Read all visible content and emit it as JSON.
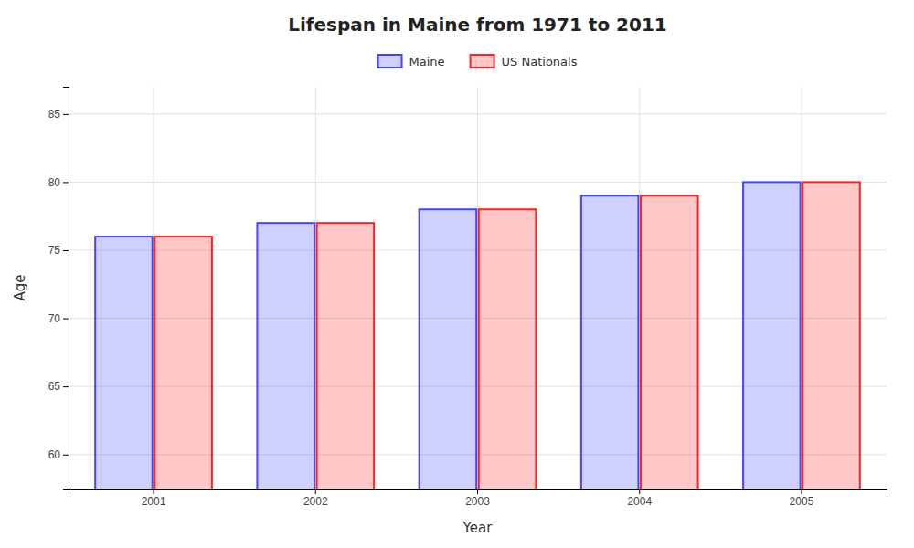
{
  "chart_data": {
    "type": "bar",
    "title": "Lifespan in Maine from 1971 to 2011",
    "xlabel": "Year",
    "ylabel": "Age",
    "categories": [
      "2001",
      "2002",
      "2003",
      "2004",
      "2005"
    ],
    "series": [
      {
        "name": "Maine",
        "color": "#4444ff",
        "values": [
          76,
          77,
          78,
          79,
          80
        ]
      },
      {
        "name": "US Nationals",
        "color": "#ff2222",
        "values": [
          76,
          77,
          78,
          79,
          80
        ]
      }
    ],
    "ylim": [
      57.5,
      87
    ],
    "yticks": [
      60,
      65,
      70,
      75,
      80,
      85
    ],
    "grid": true,
    "legend": "top"
  }
}
